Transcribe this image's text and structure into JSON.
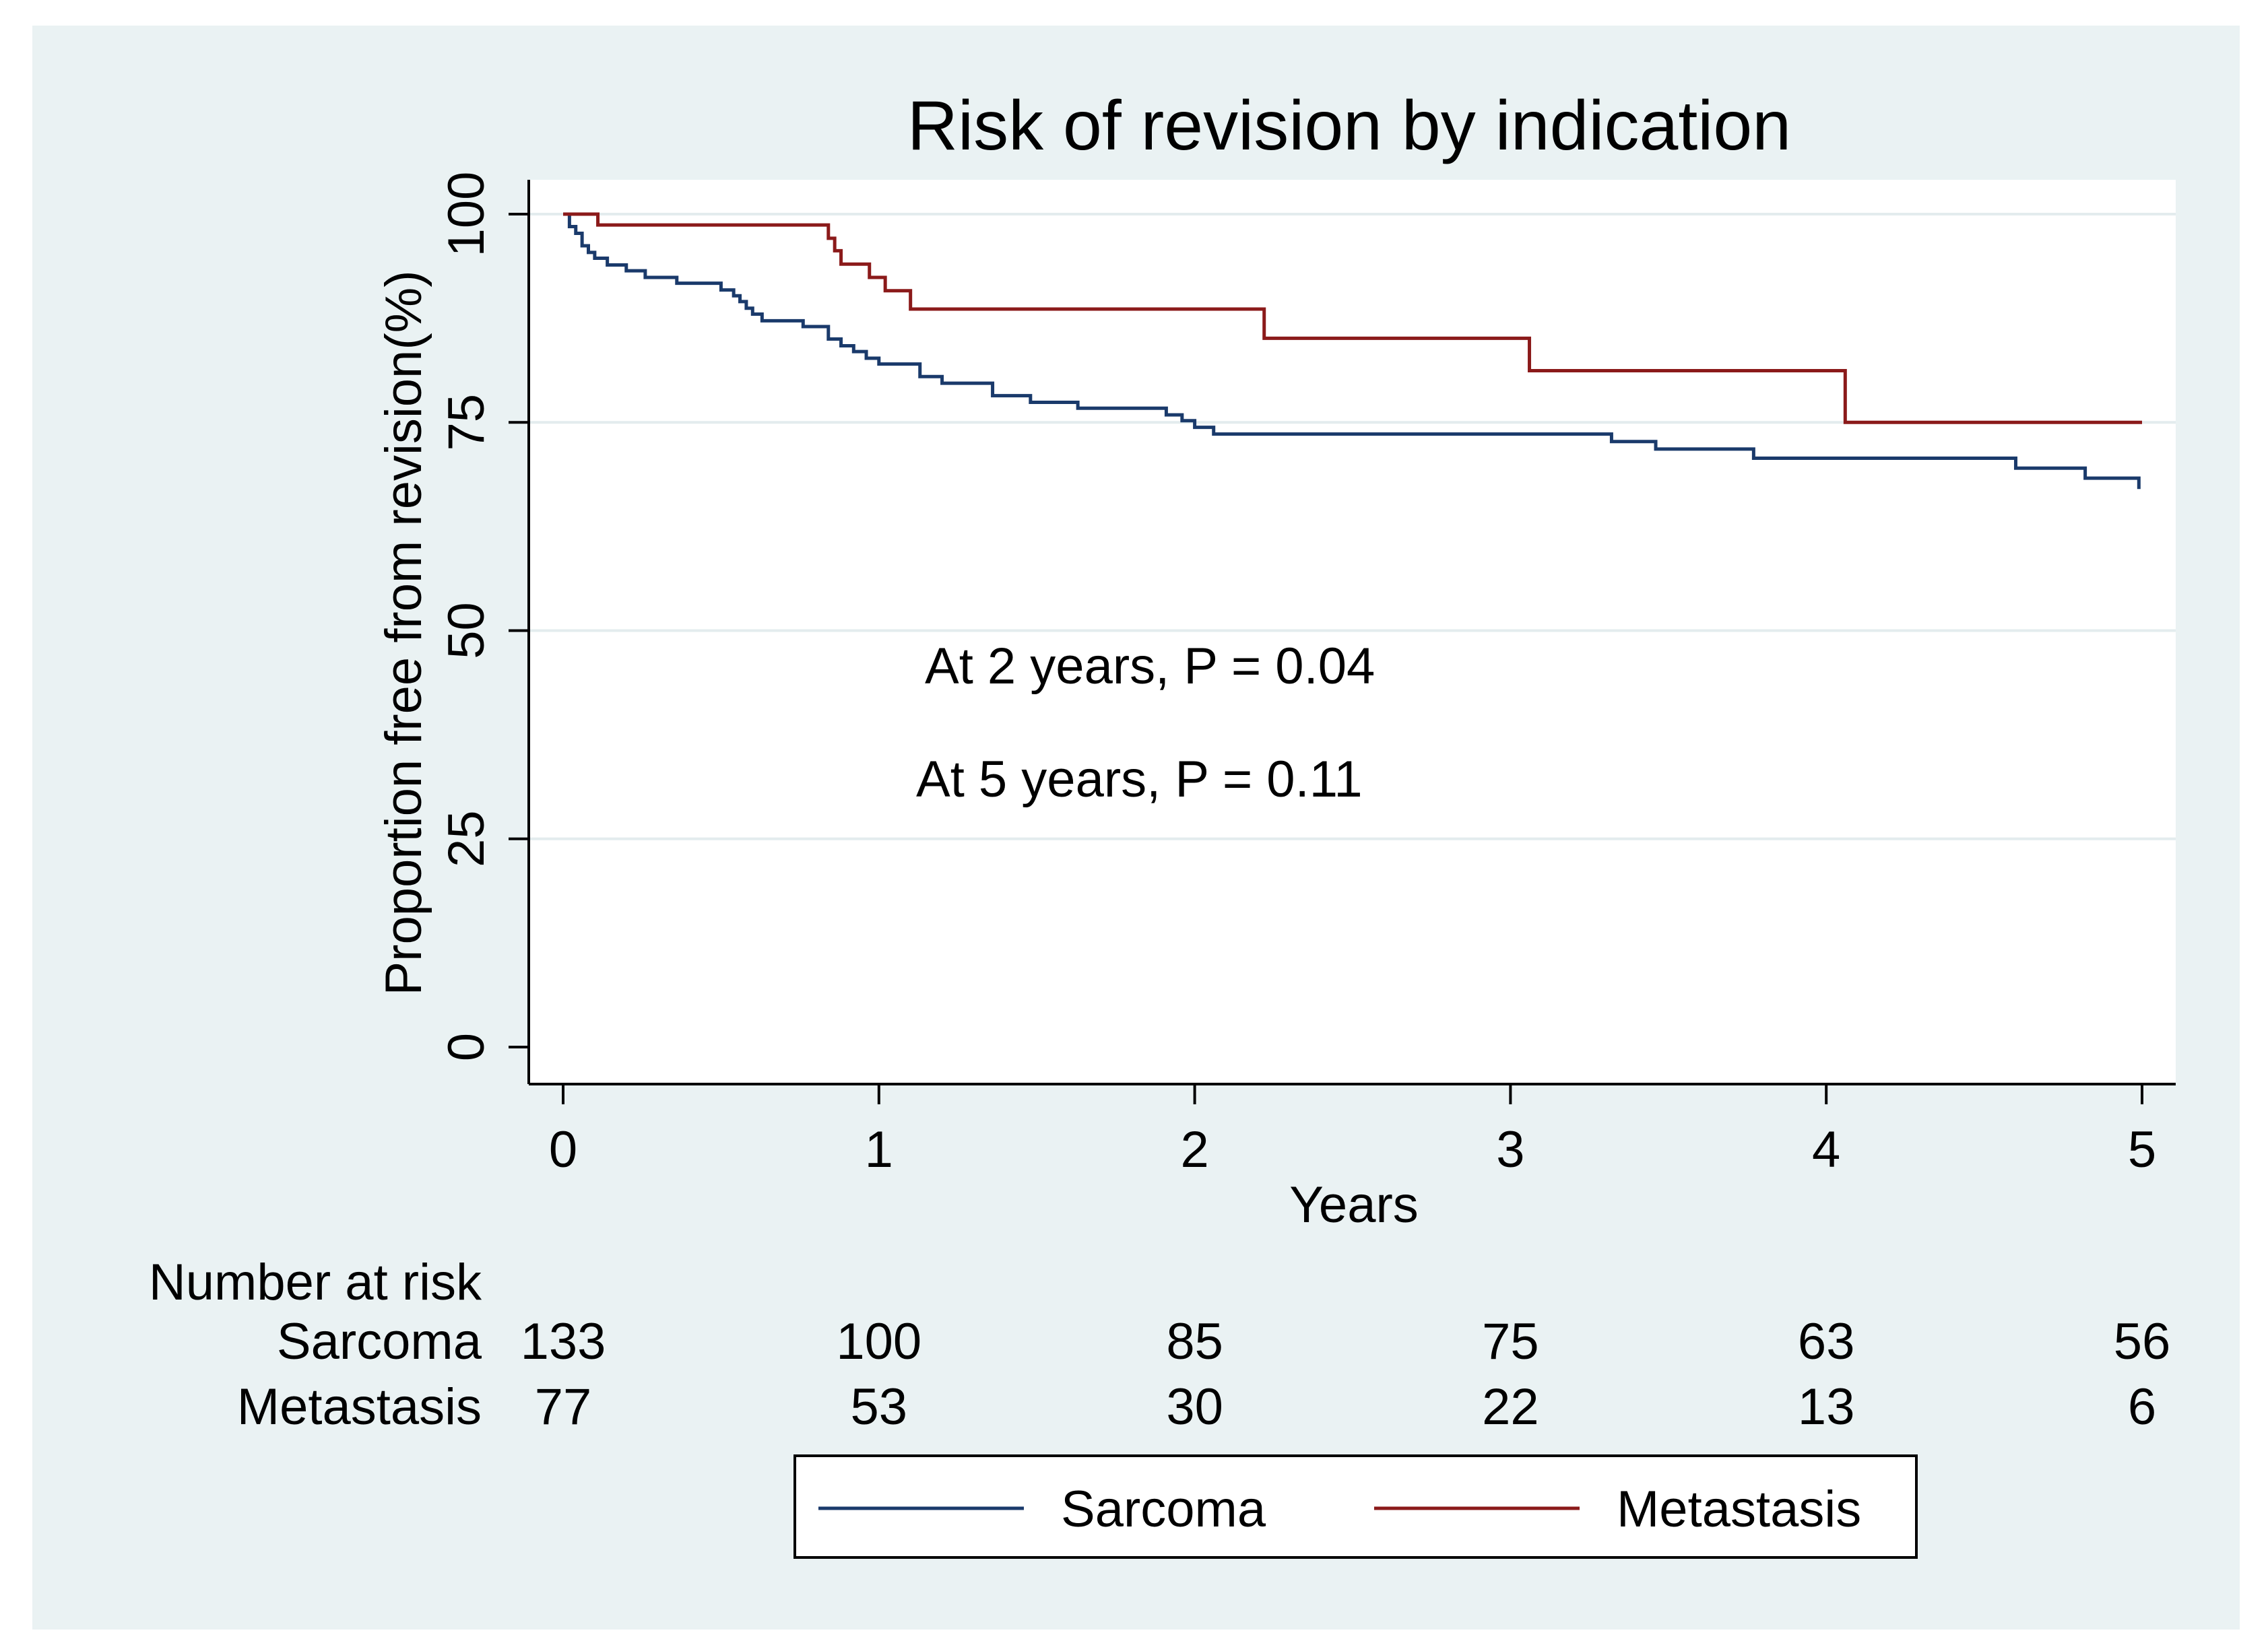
{
  "chart_data": {
    "type": "line",
    "title": "Risk of revision by indication",
    "xlabel": "Years",
    "ylabel": "Proportion free from revision(%)",
    "xlim": [
      0,
      5
    ],
    "ylim": [
      0,
      100
    ],
    "x_ticks": [
      0,
      1,
      2,
      3,
      4,
      5
    ],
    "y_ticks": [
      0,
      25,
      50,
      75,
      100
    ],
    "grid": "horizontal",
    "annotations": [
      "At 2 years, P = 0.04",
      "At 5 years, P = 0.11"
    ],
    "series": [
      {
        "name": "Sarcoma",
        "color": "#1a3a6b",
        "step": true,
        "points": [
          [
            0,
            100
          ],
          [
            0.02,
            98.5
          ],
          [
            0.04,
            97.7
          ],
          [
            0.06,
            96.2
          ],
          [
            0.08,
            95.4
          ],
          [
            0.1,
            94.7
          ],
          [
            0.14,
            93.9
          ],
          [
            0.2,
            93.2
          ],
          [
            0.26,
            92.4
          ],
          [
            0.36,
            91.7
          ],
          [
            0.5,
            90.9
          ],
          [
            0.54,
            90.2
          ],
          [
            0.56,
            89.5
          ],
          [
            0.58,
            88.7
          ],
          [
            0.6,
            88
          ],
          [
            0.63,
            87.2
          ],
          [
            0.76,
            86.5
          ],
          [
            0.84,
            85
          ],
          [
            0.88,
            84.2
          ],
          [
            0.92,
            83.5
          ],
          [
            0.96,
            82.7
          ],
          [
            1.0,
            82
          ],
          [
            1.13,
            80.5
          ],
          [
            1.2,
            79.7
          ],
          [
            1.36,
            78.2
          ],
          [
            1.48,
            77.4
          ],
          [
            1.63,
            76.7
          ],
          [
            1.91,
            75.9
          ],
          [
            1.96,
            75.2
          ],
          [
            2.0,
            74.4
          ],
          [
            2.06,
            73.6
          ],
          [
            3.32,
            72.7
          ],
          [
            3.46,
            71.8
          ],
          [
            3.77,
            70.7
          ],
          [
            4.6,
            69.5
          ],
          [
            4.82,
            68.3
          ],
          [
            4.99,
            67
          ]
        ]
      },
      {
        "name": "Metastasis",
        "color": "#8b1a1a",
        "step": true,
        "points": [
          [
            0,
            100
          ],
          [
            0.11,
            98.7
          ],
          [
            0.84,
            97.1
          ],
          [
            0.86,
            95.6
          ],
          [
            0.88,
            94
          ],
          [
            0.97,
            92.4
          ],
          [
            1.02,
            90.8
          ],
          [
            1.1,
            88.6
          ],
          [
            2.22,
            85.1
          ],
          [
            3.06,
            81.2
          ],
          [
            4.06,
            75
          ],
          [
            5.0,
            75
          ]
        ]
      }
    ],
    "risk_table": {
      "title": "Number at risk",
      "times": [
        0,
        1,
        2,
        3,
        4,
        5
      ],
      "rows": [
        {
          "label": "Sarcoma",
          "values": [
            "133",
            "100",
            "85",
            "75",
            "63",
            "56"
          ]
        },
        {
          "label": "Metastasis",
          "values": [
            "77",
            "53",
            "30",
            "22",
            "13",
            "6"
          ]
        }
      ]
    },
    "legend": {
      "position": "bottom",
      "entries": [
        "Sarcoma",
        "Metastasis"
      ]
    }
  },
  "colors": {
    "frame_background": "#eaf2f3",
    "plot_background": "#ffffff",
    "gridline": "#e3ecee"
  }
}
